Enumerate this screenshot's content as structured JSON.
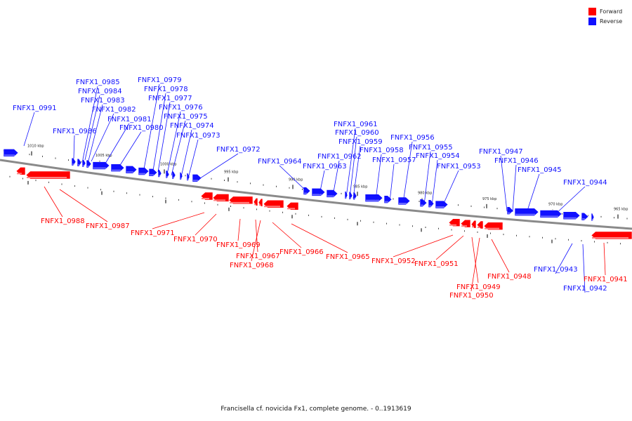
{
  "caption": "Francisella cf. novicida Fx1, complete genome. - 0..1913619",
  "legend": [
    {
      "label": "Forward",
      "color": "#ff0000"
    },
    {
      "label": "Reverse",
      "color": "#1010ff"
    }
  ],
  "colors": {
    "forward": "#ff0000",
    "reverse": "#1010ff"
  },
  "ticks": [
    {
      "kbp": 1010,
      "label": "1010 kbp"
    },
    {
      "kbp": 1005,
      "label": "1005 kbp"
    },
    {
      "kbp": 1000,
      "label": "1000 kbp"
    },
    {
      "kbp": 995,
      "label": "995 kbp"
    },
    {
      "kbp": 990,
      "label": "990 kbp"
    },
    {
      "kbp": 985,
      "label": "985 kbp"
    },
    {
      "kbp": 980,
      "label": "980 kbp"
    },
    {
      "kbp": 975,
      "label": "975 kbp"
    },
    {
      "kbp": 970,
      "label": "970 kbp"
    },
    {
      "kbp": 965,
      "label": "965 kbp"
    }
  ],
  "genes": [
    {
      "name": "FNFX1_0991",
      "strand": "reverse"
    },
    {
      "name": "FNFX1_0986",
      "strand": "reverse"
    },
    {
      "name": "FNFX1_0985",
      "strand": "reverse"
    },
    {
      "name": "FNFX1_0984",
      "strand": "reverse"
    },
    {
      "name": "FNFX1_0983",
      "strand": "reverse"
    },
    {
      "name": "FNFX1_0982",
      "strand": "reverse"
    },
    {
      "name": "FNFX1_0981",
      "strand": "reverse"
    },
    {
      "name": "FNFX1_0980",
      "strand": "reverse"
    },
    {
      "name": "FNFX1_0979",
      "strand": "reverse"
    },
    {
      "name": "FNFX1_0978",
      "strand": "reverse"
    },
    {
      "name": "FNFX1_0977",
      "strand": "reverse"
    },
    {
      "name": "FNFX1_0976",
      "strand": "reverse"
    },
    {
      "name": "FNFX1_0975",
      "strand": "reverse"
    },
    {
      "name": "FNFX1_0974",
      "strand": "reverse"
    },
    {
      "name": "FNFX1_0973",
      "strand": "reverse"
    },
    {
      "name": "FNFX1_0972",
      "strand": "reverse"
    },
    {
      "name": "FNFX1_0964",
      "strand": "reverse"
    },
    {
      "name": "FNFX1_0963",
      "strand": "reverse"
    },
    {
      "name": "FNFX1_0962",
      "strand": "reverse"
    },
    {
      "name": "FNFX1_0961",
      "strand": "reverse"
    },
    {
      "name": "FNFX1_0960",
      "strand": "reverse"
    },
    {
      "name": "FNFX1_0959",
      "strand": "reverse"
    },
    {
      "name": "FNFX1_0958",
      "strand": "reverse"
    },
    {
      "name": "FNFX1_0957",
      "strand": "reverse"
    },
    {
      "name": "FNFX1_0956",
      "strand": "reverse"
    },
    {
      "name": "FNFX1_0955",
      "strand": "reverse"
    },
    {
      "name": "FNFX1_0954",
      "strand": "reverse"
    },
    {
      "name": "FNFX1_0953",
      "strand": "reverse"
    },
    {
      "name": "FNFX1_0947",
      "strand": "reverse"
    },
    {
      "name": "FNFX1_0946",
      "strand": "reverse"
    },
    {
      "name": "FNFX1_0945",
      "strand": "reverse"
    },
    {
      "name": "FNFX1_0944",
      "strand": "reverse"
    },
    {
      "name": "FNFX1_0943",
      "strand": "reverse"
    },
    {
      "name": "FNFX1_0942",
      "strand": "reverse"
    },
    {
      "name": "FNFX1_0988",
      "strand": "forward"
    },
    {
      "name": "FNFX1_0987",
      "strand": "forward"
    },
    {
      "name": "FNFX1_0971",
      "strand": "forward"
    },
    {
      "name": "FNFX1_0970",
      "strand": "forward"
    },
    {
      "name": "FNFX1_0969",
      "strand": "forward"
    },
    {
      "name": "FNFX1_0967",
      "strand": "forward"
    },
    {
      "name": "FNFX1_0968",
      "strand": "forward"
    },
    {
      "name": "FNFX1_0966",
      "strand": "forward"
    },
    {
      "name": "FNFX1_0965",
      "strand": "forward"
    },
    {
      "name": "FNFX1_0952",
      "strand": "forward"
    },
    {
      "name": "FNFX1_0951",
      "strand": "forward"
    },
    {
      "name": "FNFX1_0948",
      "strand": "forward"
    },
    {
      "name": "FNFX1_0949",
      "strand": "forward"
    },
    {
      "name": "FNFX1_0950",
      "strand": "forward"
    },
    {
      "name": "FNFX1_0941",
      "strand": "forward"
    }
  ]
}
